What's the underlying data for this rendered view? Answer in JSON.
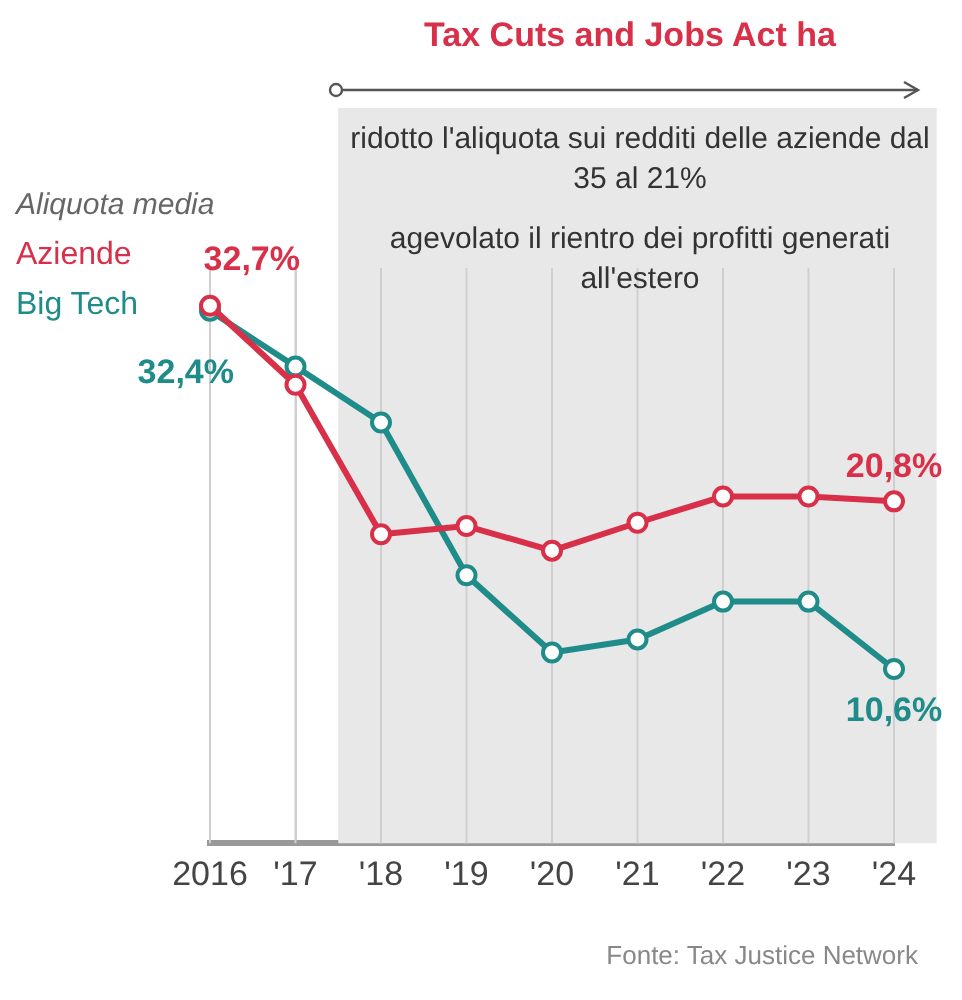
{
  "chart_data": {
    "type": "line",
    "title": "Tax Cuts and Jobs Act ha",
    "categories": [
      "2016",
      "'17",
      "'18",
      "'19",
      "'20",
      "'21",
      "'22",
      "'23",
      "'24"
    ],
    "series": [
      {
        "name": "Aziende",
        "color": "#d9304a",
        "values": [
          32.7,
          27.9,
          18.8,
          19.3,
          17.8,
          19.5,
          21.1,
          21.1,
          20.8
        ],
        "value_labels": [
          "32,7%",
          null,
          null,
          null,
          null,
          null,
          null,
          null,
          "20,8%"
        ]
      },
      {
        "name": "Big Tech",
        "color": "#1f8c8a",
        "values": [
          32.4,
          29.0,
          25.6,
          16.3,
          11.6,
          12.4,
          14.7,
          14.7,
          10.6
        ],
        "value_labels": [
          "32,4%",
          null,
          null,
          null,
          null,
          null,
          null,
          null,
          "10,6%"
        ]
      }
    ],
    "legend_title": "Aliquota media",
    "legend": "top left",
    "marker": "circle",
    "grid": "x",
    "tick_labels": "x",
    "ylim": [
      0,
      35
    ],
    "bands": [
      {
        "axis": "x",
        "from": "'18",
        "to": "'24",
        "color": "#e8e8e8"
      }
    ],
    "annotations": [
      "ridotto l'aliquota sui redditi delle aziende dal 35 al 21%",
      "agevolato il rientro dei profitti generati all'estero",
      "Fonte: Tax Justice Network"
    ]
  }
}
